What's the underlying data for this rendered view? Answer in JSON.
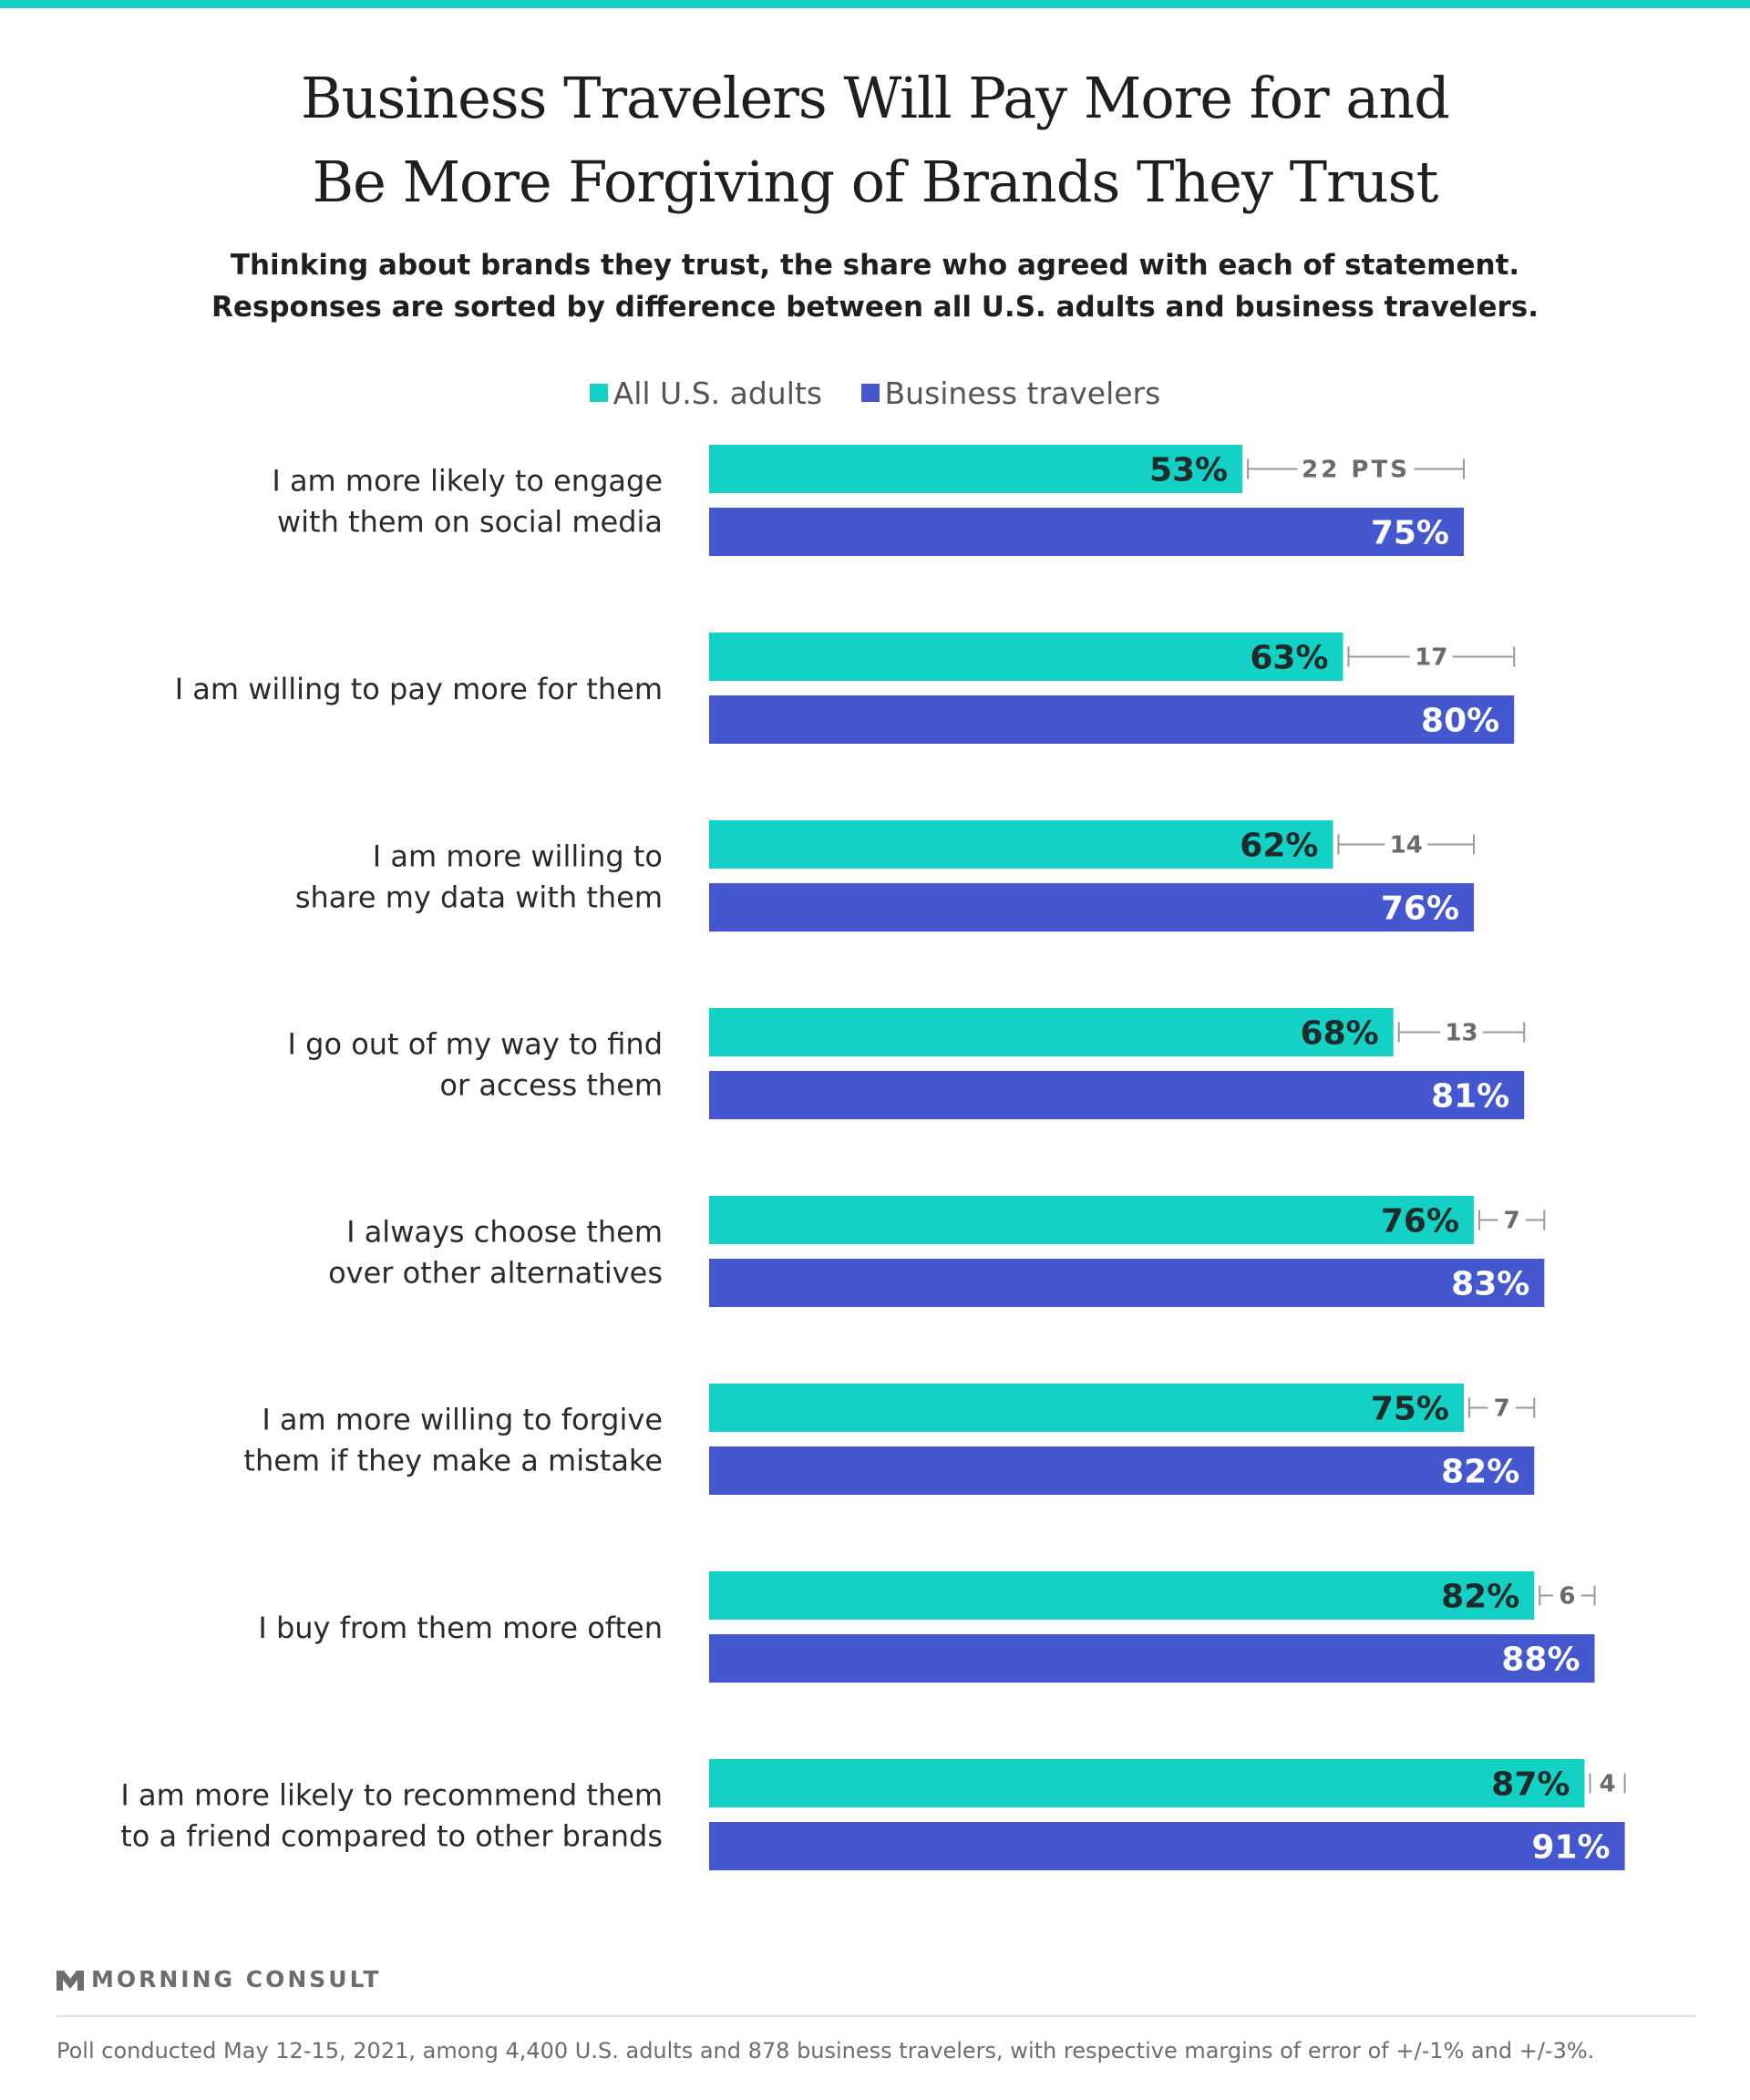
{
  "header": {
    "title_line1": "Business Travelers Will Pay More for and",
    "title_line2": "Be More Forgiving of Brands They Trust",
    "subtitle_line1": "Thinking about brands they trust, the share who agreed with each of statement.",
    "subtitle_line2": "Responses are sorted by difference between all U.S. adults and business travelers."
  },
  "colors": {
    "adults": "#13d1c4",
    "travelers": "#4457cf",
    "gap": "#9a9a9a"
  },
  "chart_data": {
    "type": "bar",
    "orientation": "horizontal",
    "categories": [
      [
        "I am more likely to engage",
        "with them on social media"
      ],
      [
        "I am willing to pay more for them"
      ],
      [
        "I am more willing to",
        "share my data with them"
      ],
      [
        "I go out of my way to find",
        "or access them"
      ],
      [
        "I always choose them",
        "over other alternatives"
      ],
      [
        "I am more willing to forgive",
        "them if they make a mistake"
      ],
      [
        "I buy from them more often"
      ],
      [
        "I am more likely to recommend them",
        "to a friend compared to other brands"
      ]
    ],
    "series": [
      {
        "name": "All U.S. adults",
        "values": [
          53,
          63,
          62,
          68,
          76,
          75,
          82,
          87
        ]
      },
      {
        "name": "Business travelers",
        "values": [
          75,
          80,
          76,
          81,
          83,
          82,
          88,
          91
        ]
      }
    ],
    "value_labels": {
      "adults": [
        "53%",
        "63%",
        "62%",
        "68%",
        "76%",
        "75%",
        "82%",
        "87%"
      ],
      "travelers": [
        "75%",
        "80%",
        "76%",
        "81%",
        "83%",
        "82%",
        "88%",
        "91%"
      ]
    },
    "gap_labels": [
      "22 PTS",
      "17",
      "14",
      "13",
      "7",
      "7",
      "6",
      "4"
    ],
    "legend_position": "top",
    "grid": false
  },
  "footer": {
    "brand": "MORNING CONSULT",
    "note": "Poll conducted May 12-15, 2021, among 4,400 U.S. adults and 878 business travelers, with respective margins of error of +/-1% and +/-3%."
  }
}
